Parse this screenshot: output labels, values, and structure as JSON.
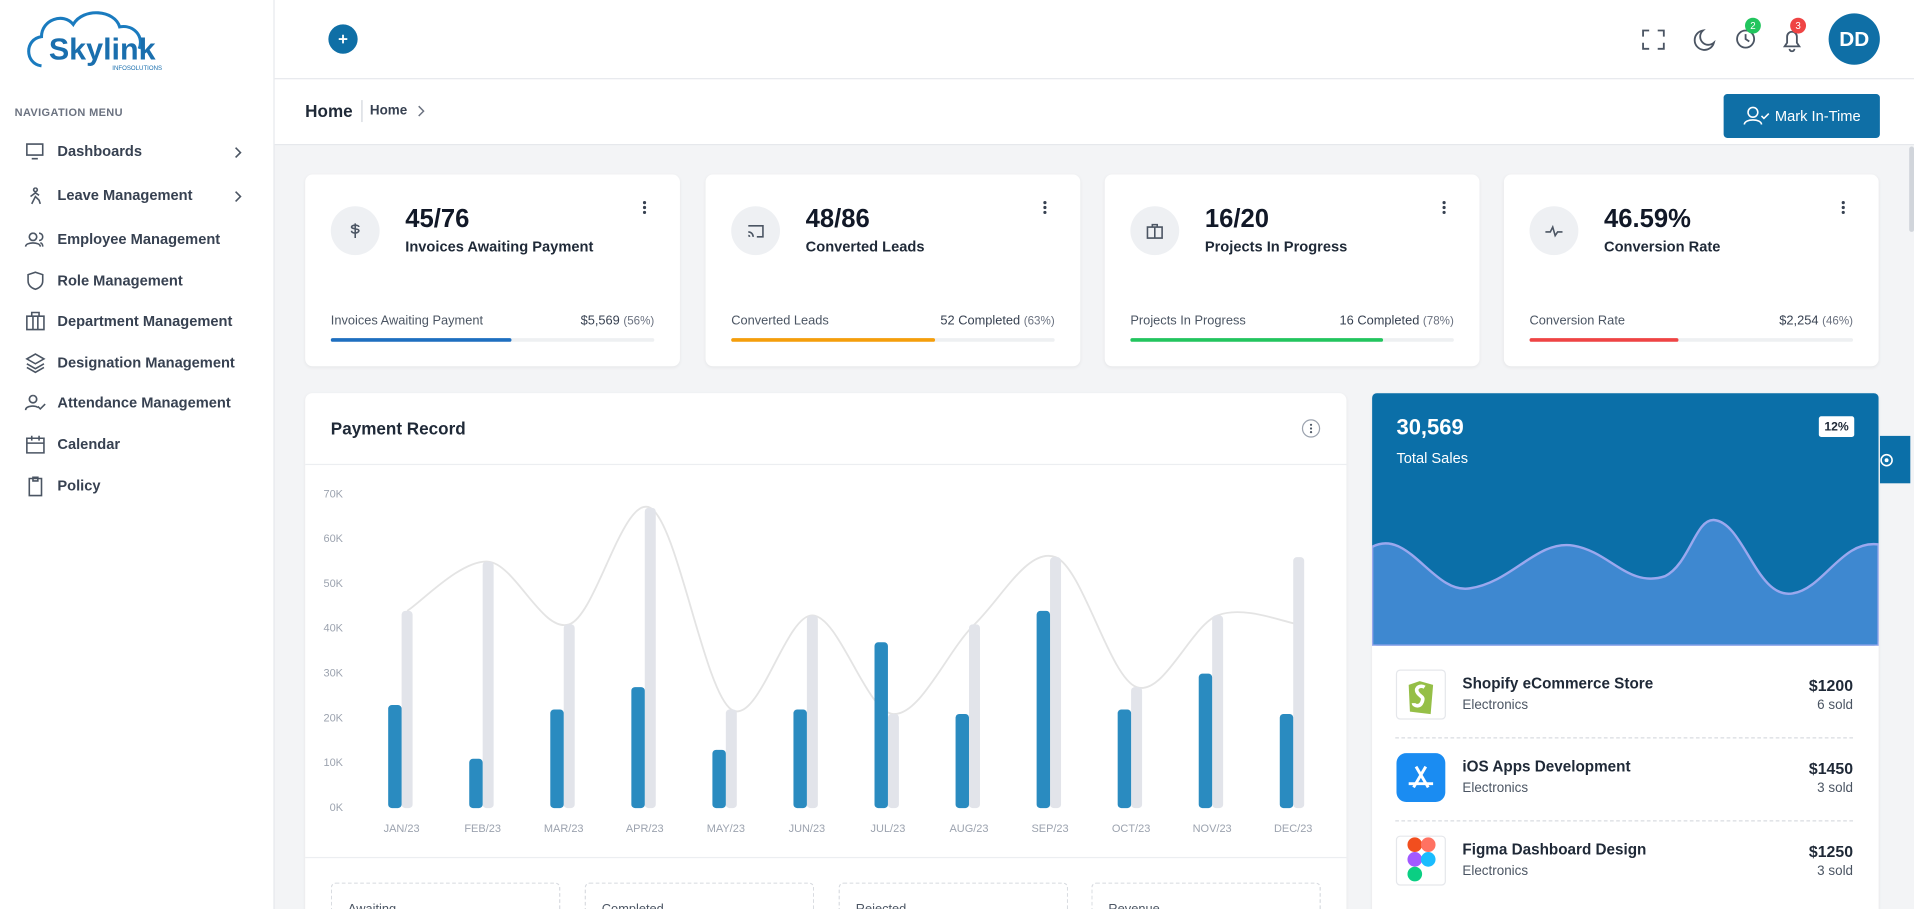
{
  "brand": {
    "name": "Skylink",
    "tagline": "INFOSOLUTIONS"
  },
  "header": {
    "clock_badge": 2,
    "bell_badge": 3,
    "avatar": "DD"
  },
  "sidebar": {
    "heading": "NAVIGATION MENU",
    "items": [
      {
        "label": "Dashboards",
        "expandable": true
      },
      {
        "label": "Leave Management",
        "expandable": true
      },
      {
        "label": "Employee Management",
        "expandable": false
      },
      {
        "label": "Role Management",
        "expandable": false
      },
      {
        "label": "Department Management",
        "expandable": false
      },
      {
        "label": "Designation Management",
        "expandable": false
      },
      {
        "label": "Attendance Management",
        "expandable": false
      },
      {
        "label": "Calendar",
        "expandable": false
      },
      {
        "label": "Policy",
        "expandable": false
      }
    ]
  },
  "breadcrumb": {
    "title": "Home",
    "crumb": "Home",
    "button": "Mark In-Time"
  },
  "stat_cards": [
    {
      "value": "45/76",
      "label": "Invoices Awaiting Payment",
      "footer_label": "Invoices Awaiting Payment",
      "footer_value": "$5,569",
      "progress": 56,
      "progress_label": "(56%)",
      "color": "#1e6fc0"
    },
    {
      "value": "48/86",
      "label": "Converted Leads",
      "footer_label": "Converted Leads",
      "footer_value": "52 Completed",
      "progress": 63,
      "progress_label": "(63%)",
      "color": "#f59e0b"
    },
    {
      "value": "16/20",
      "label": "Projects In Progress",
      "footer_label": "Projects In Progress",
      "footer_value": "16 Completed",
      "progress": 78,
      "progress_label": "(78%)",
      "color": "#22c55e"
    },
    {
      "value": "46.59%",
      "label": "Conversion Rate",
      "footer_label": "Conversion Rate",
      "footer_value": "$2,254",
      "progress": 46,
      "progress_label": "(46%)",
      "color": "#ef4444"
    }
  ],
  "payment_record": {
    "title": "Payment Record",
    "chart": {
      "type": "bar",
      "categories": [
        "JAN/23",
        "FEB/23",
        "MAR/23",
        "APR/23",
        "MAY/23",
        "JUN/23",
        "JUL/23",
        "AUG/23",
        "SEP/23",
        "OCT/23",
        "NOV/23",
        "DEC/23"
      ],
      "series": [
        {
          "type": "bar",
          "color": "#2a8bc0",
          "values": [
            23,
            11,
            22,
            27,
            13,
            22,
            37,
            21,
            44,
            22,
            30,
            21
          ]
        },
        {
          "type": "bar",
          "color": "#e2e4ea",
          "values": [
            44,
            55,
            41,
            67,
            22,
            43,
            21,
            41,
            56,
            27,
            43,
            56
          ]
        },
        {
          "type": "line",
          "color": "#e4e4e4",
          "values": [
            44,
            55,
            41,
            67,
            22,
            43,
            21,
            41,
            56,
            27,
            43,
            41
          ]
        }
      ],
      "ylim": [
        0,
        70
      ],
      "yticks": [
        {
          "value": 0,
          "label": "0K"
        },
        {
          "value": 10,
          "label": "10K"
        },
        {
          "value": 20,
          "label": "20K"
        },
        {
          "value": 30,
          "label": "30K"
        },
        {
          "value": 40,
          "label": "40K"
        },
        {
          "value": 50,
          "label": "50K"
        },
        {
          "value": 60,
          "label": "60K"
        },
        {
          "value": 70,
          "label": "70K"
        }
      ]
    },
    "summary": [
      "Awaiting",
      "Completed",
      "Rejected",
      "Revenue"
    ]
  },
  "total_sales": {
    "value": "30,569",
    "label": "Total Sales",
    "change": "12%"
  },
  "products": [
    {
      "name": "Shopify eCommerce Store",
      "category": "Electronics",
      "price": "$1200",
      "sold": "6 sold"
    },
    {
      "name": "iOS Apps Development",
      "category": "Electronics",
      "price": "$1450",
      "sold": "3 sold"
    },
    {
      "name": "Figma Dashboard Design",
      "category": "Electronics",
      "price": "$1250",
      "sold": "3 sold"
    }
  ]
}
